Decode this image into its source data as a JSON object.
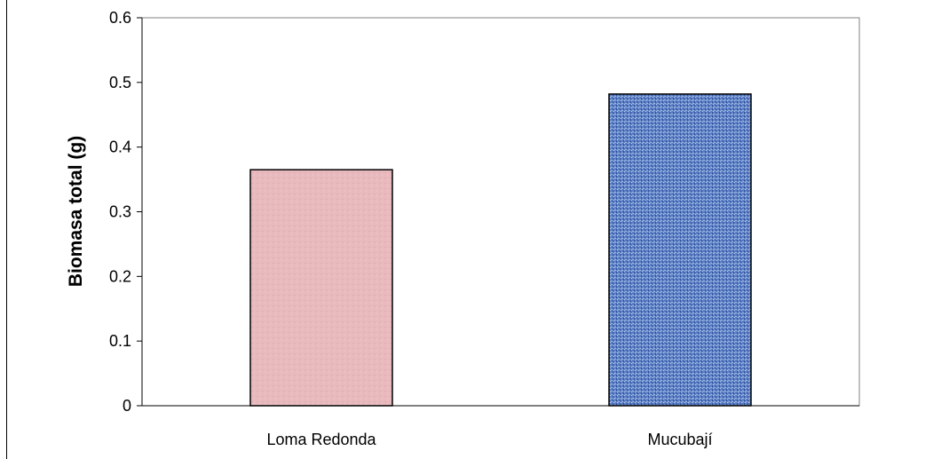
{
  "chart_data": {
    "type": "bar",
    "title": "",
    "xlabel": "",
    "ylabel": "Biomasa total (g)",
    "categories": [
      "Loma Redonda",
      "Mucubají"
    ],
    "values": [
      0.365,
      0.482
    ],
    "ylim": [
      0,
      0.6
    ],
    "yticks": [
      "0",
      "0.1",
      "0.2",
      "0.3",
      "0.4",
      "0.5",
      "0.6"
    ],
    "grid": false,
    "legend": "none",
    "colors": [
      "#e8b8bc",
      "#5b7fc4"
    ]
  }
}
